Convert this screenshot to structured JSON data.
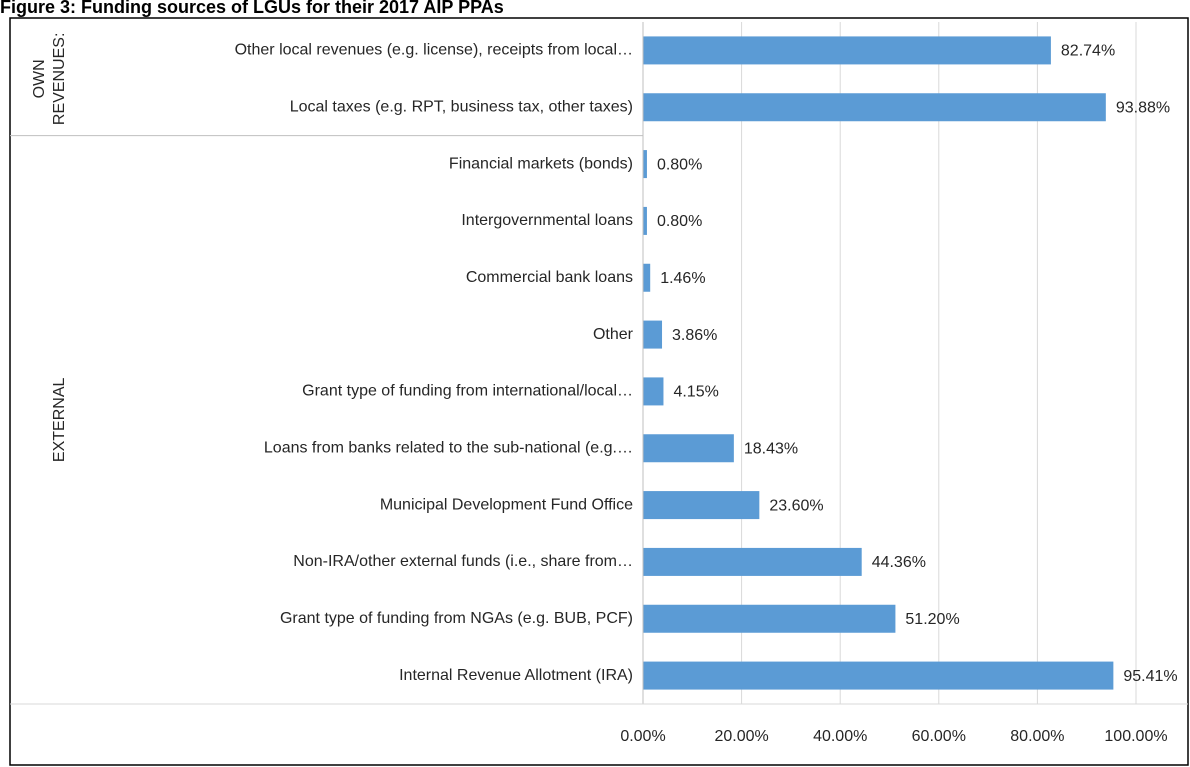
{
  "chart_data": {
    "type": "grouped-hbar",
    "title": "Figure 3: Funding sources of LGUs for their 2017 AIP PPAs",
    "color": "#5b9bd5",
    "grid": true,
    "xlim": [
      0,
      100
    ],
    "xticks": [
      {
        "value": 0,
        "label": "0.00%"
      },
      {
        "value": 20,
        "label": "20.00%"
      },
      {
        "value": 40,
        "label": "40.00%"
      },
      {
        "value": 60,
        "label": "60.00%"
      },
      {
        "value": 80,
        "label": "80.00%"
      },
      {
        "value": 100,
        "label": "100.00%"
      }
    ],
    "groups": [
      {
        "name": [
          "OWN",
          "REVENUES:"
        ],
        "categories": [
          "Other local revenues (e.g. license), receipts from local…",
          "Local taxes (e.g. RPT, business tax, other taxes)"
        ],
        "values": [
          82.74,
          93.88
        ],
        "value_labels": [
          "82.74%",
          "93.88%"
        ]
      },
      {
        "name": [
          "EXTERNAL"
        ],
        "categories": [
          "Financial markets (bonds)",
          "Intergovernmental loans",
          "Commercial bank loans",
          "Other",
          "Grant type of funding from international/local…",
          "Loans from banks related to the sub-national (e.g.…",
          "Municipal Development Fund Office",
          "Non-IRA/other external funds (i.e., share from…",
          "Grant type of funding from NGAs (e.g. BUB, PCF)",
          "Internal Revenue Allotment (IRA)"
        ],
        "values": [
          0.8,
          0.8,
          1.46,
          3.86,
          4.15,
          18.43,
          23.6,
          44.36,
          51.2,
          95.41
        ],
        "value_labels": [
          "0.80%",
          "0.80%",
          "1.46%",
          "3.86%",
          "4.15%",
          "18.43%",
          "23.60%",
          "44.36%",
          "51.20%",
          "95.41%"
        ]
      }
    ]
  }
}
